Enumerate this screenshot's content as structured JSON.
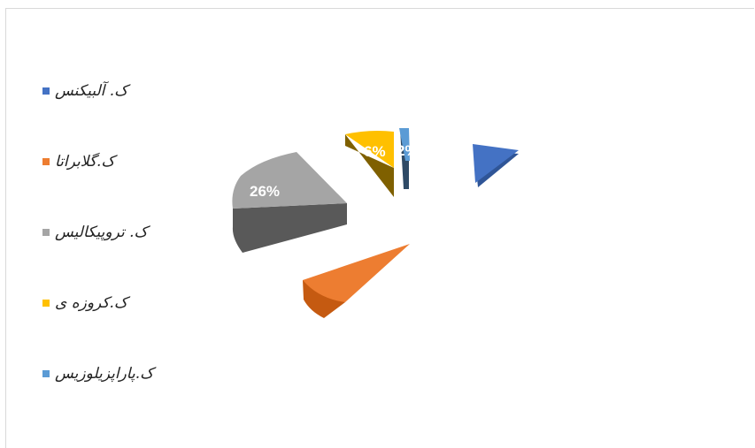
{
  "chart_data": {
    "type": "pie",
    "title": "",
    "categories": [
      "ک. آلبیکنس",
      "ک.گلابراتا",
      "ک. تروپیکالیس",
      "ک.کروزه ی",
      "ک.پاراپزیلوزیس"
    ],
    "values": [
      null,
      null,
      26,
      6,
      2
    ],
    "data_labels": [
      "",
      "",
      "26%",
      "6%",
      "2%"
    ],
    "colors": [
      "#4472C4",
      "#ED7D31",
      "#A5A5A5",
      "#FFC000",
      "#5B9BD5"
    ],
    "legend_position": "left",
    "style": "3d-exploded"
  }
}
